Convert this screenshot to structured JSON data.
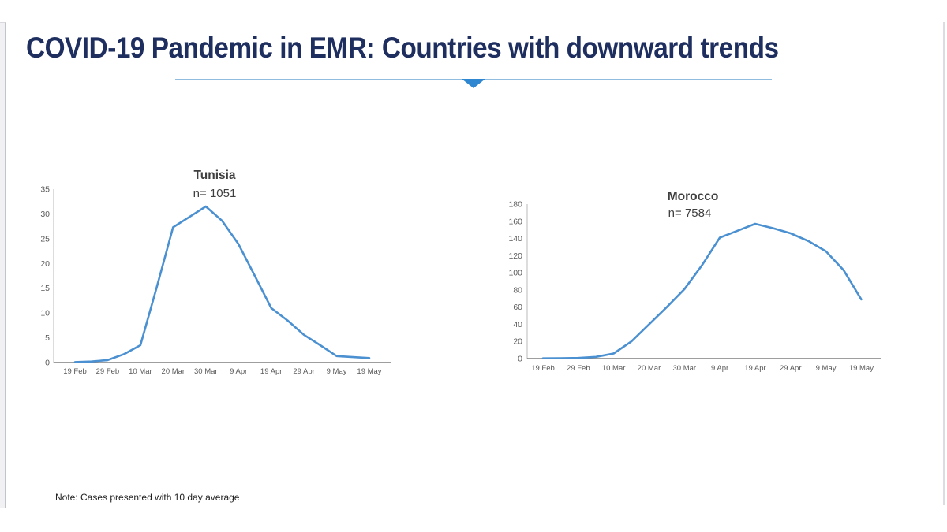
{
  "slide": {
    "title": "COVID-19 Pandemic in EMR: Countries with downward trends",
    "note": "Note: Cases presented with 10 day average",
    "colors": {
      "title": "#1d2e5f",
      "divider_line": "#8fbcdf",
      "divider_arrow": "#2f87d2"
    }
  },
  "chart_data": [
    {
      "type": "line",
      "title": "Tunisia",
      "subtitle": "n= 1051",
      "xlabel": "",
      "ylabel": "",
      "grid": false,
      "legend": "none",
      "line_color": "#4b90d0",
      "ylim": [
        0,
        35
      ],
      "y_ticks": [
        0,
        5,
        10,
        15,
        20,
        25,
        30,
        35
      ],
      "categories": [
        "19 Feb",
        "29 Feb",
        "10 Mar",
        "20 Mar",
        "30 Mar",
        "9 Apr",
        "19 Apr",
        "29 Apr",
        "9 May",
        "19 May"
      ],
      "category_days": [
        0,
        10,
        20,
        30,
        40,
        50,
        60,
        70,
        80,
        90
      ],
      "series": [
        {
          "name": "Tunisia 10-day average cases",
          "days": [
            0,
            5,
            10,
            15,
            20,
            25,
            30,
            35,
            40,
            45,
            50,
            55,
            60,
            65,
            70,
            75,
            80,
            85,
            90
          ],
          "values": [
            0.1,
            0.2,
            0.5,
            1.7,
            3.5,
            15.2,
            27.3,
            29.4,
            31.5,
            28.6,
            23.9,
            17.5,
            11,
            8.5,
            5.6,
            3.5,
            1.3,
            1.1,
            0.9
          ]
        }
      ]
    },
    {
      "type": "line",
      "title": "Morocco",
      "subtitle": "n= 7584",
      "xlabel": "",
      "ylabel": "",
      "grid": false,
      "legend": "none",
      "line_color": "#4b90d0",
      "ylim": [
        0,
        180
      ],
      "y_ticks": [
        0,
        20,
        40,
        60,
        80,
        100,
        120,
        140,
        160,
        180
      ],
      "categories": [
        "19 Feb",
        "29 Feb",
        "10 Mar",
        "20 Mar",
        "30 Mar",
        "9 Apr",
        "19 Apr",
        "29 Apr",
        "9 May",
        "19 May"
      ],
      "category_days": [
        0,
        10,
        20,
        30,
        40,
        50,
        60,
        70,
        80,
        90
      ],
      "series": [
        {
          "name": "Morocco 10-day average cases",
          "days": [
            0,
            5,
            10,
            15,
            20,
            25,
            30,
            35,
            40,
            45,
            50,
            55,
            60,
            65,
            70,
            75,
            80,
            85,
            90
          ],
          "values": [
            0.3,
            0.4,
            0.7,
            2,
            6,
            20,
            40,
            60,
            81,
            109,
            141,
            149,
            157,
            152,
            146,
            137,
            125,
            103,
            69
          ]
        }
      ]
    }
  ]
}
